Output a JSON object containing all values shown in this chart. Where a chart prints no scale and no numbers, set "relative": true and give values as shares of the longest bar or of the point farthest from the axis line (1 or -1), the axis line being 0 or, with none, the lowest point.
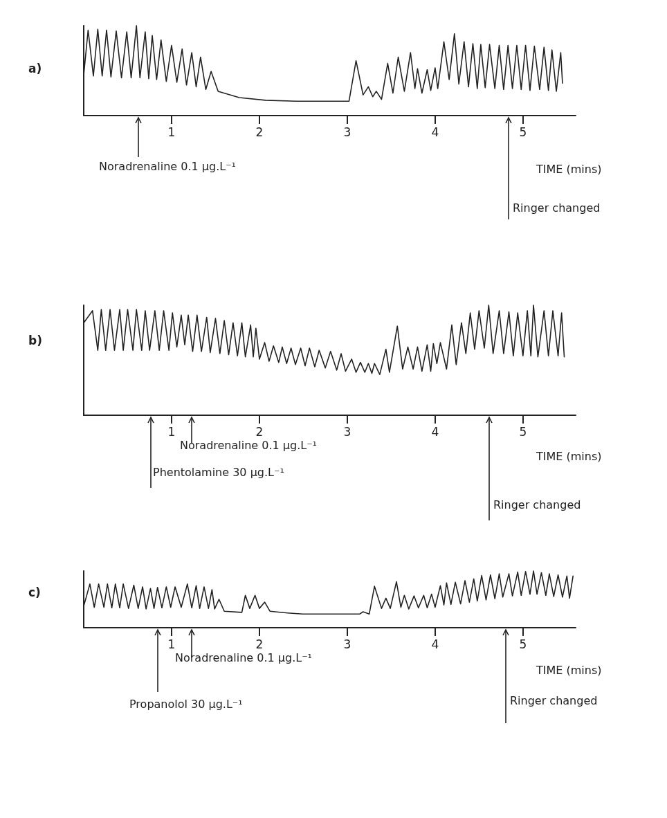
{
  "chart_data": [
    {
      "type": "line",
      "title": "a)",
      "xlabel": "TIME (mins)",
      "relative": true,
      "xlim": [
        0,
        5.6
      ],
      "xticks": [
        1,
        2,
        3,
        4,
        5
      ],
      "grid": false,
      "marker": "none",
      "line_style": "solid",
      "tick_labels": "x",
      "annotations": [
        "Noradrenaline 0.1 µg.L⁻¹",
        "Ringer changed"
      ],
      "series": [
        {
          "color": "#222222",
          "x": [
            0,
            0.05,
            0.11,
            0.16,
            0.21,
            0.26,
            0.31,
            0.37,
            0.43,
            0.49,
            0.54,
            0.6,
            0.64,
            0.7,
            0.74,
            0.78,
            0.83,
            0.88,
            0.94,
            1,
            1.06,
            1.12,
            1.17,
            1.23,
            1.28,
            1.33,
            1.39,
            1.45,
            1.53,
            1.77,
            2.07,
            2.42,
            3.02,
            3.1,
            3.18,
            3.24,
            3.29,
            3.33,
            3.39,
            3.46,
            3.52,
            3.58,
            3.65,
            3.72,
            3.77,
            3.8,
            3.85,
            3.91,
            3.95,
            4,
            4.03,
            4.1,
            4.16,
            4.22,
            4.27,
            4.33,
            4.38,
            4.43,
            4.48,
            4.52,
            4.57,
            4.62,
            4.68,
            4.73,
            4.78,
            4.83,
            4.88,
            4.93,
            4.98,
            5.03,
            5.08,
            5.13,
            5.19,
            5.24,
            5.29,
            5.33,
            5.38,
            5.43,
            5.45
          ],
          "values": [
            0.45,
            0.95,
            0.44,
            0.96,
            0.44,
            0.95,
            0.43,
            0.94,
            0.42,
            0.93,
            0.42,
            1,
            0.42,
            0.93,
            0.41,
            0.89,
            0.4,
            0.84,
            0.38,
            0.78,
            0.37,
            0.74,
            0.34,
            0.7,
            0.32,
            0.65,
            0.29,
            0.49,
            0.27,
            0.2,
            0.17,
            0.16,
            0.16,
            0.61,
            0.23,
            0.32,
            0.21,
            0.27,
            0.18,
            0.58,
            0.25,
            0.65,
            0.27,
            0.7,
            0.3,
            0.52,
            0.25,
            0.51,
            0.28,
            0.53,
            0.3,
            0.82,
            0.4,
            0.91,
            0.35,
            0.82,
            0.32,
            0.8,
            0.3,
            0.79,
            0.31,
            0.79,
            0.3,
            0.78,
            0.29,
            0.78,
            0.3,
            0.78,
            0.29,
            0.78,
            0.28,
            0.77,
            0.29,
            0.76,
            0.28,
            0.73,
            0.27,
            0.7,
            0.36
          ]
        }
      ]
    },
    {
      "type": "line",
      "title": "b)",
      "xlabel": "TIME (mins)",
      "relative": true,
      "xlim": [
        0,
        5.6
      ],
      "xticks": [
        1,
        2,
        3,
        4,
        5
      ],
      "grid": false,
      "marker": "none",
      "line_style": "solid",
      "tick_labels": "x",
      "annotations": [
        "Phentolamine 30 µg.L⁻¹",
        "Noradrenaline 0.1 µg.L⁻¹",
        "Ringer changed"
      ],
      "series": [
        {
          "color": "#222222",
          "x": [
            0,
            0.1,
            0.16,
            0.2,
            0.25,
            0.3,
            0.35,
            0.41,
            0.45,
            0.5,
            0.56,
            0.6,
            0.66,
            0.7,
            0.75,
            0.81,
            0.86,
            0.91,
            0.97,
            1.01,
            1.06,
            1.11,
            1.15,
            1.19,
            1.24,
            1.29,
            1.34,
            1.4,
            1.44,
            1.5,
            1.55,
            1.6,
            1.65,
            1.7,
            1.75,
            1.8,
            1.84,
            1.9,
            1.93,
            1.96,
            2,
            2.06,
            2.11,
            2.16,
            2.22,
            2.26,
            2.31,
            2.36,
            2.41,
            2.47,
            2.52,
            2.57,
            2.63,
            2.68,
            2.75,
            2.81,
            2.88,
            2.93,
            2.98,
            3.05,
            3.1,
            3.15,
            3.2,
            3.24,
            3.28,
            3.31,
            3.37,
            3.44,
            3.48,
            3.57,
            3.63,
            3.69,
            3.75,
            3.8,
            3.85,
            3.91,
            3.95,
            3.98,
            4.02,
            4.06,
            4.13,
            4.19,
            4.24,
            4.3,
            4.35,
            4.4,
            4.45,
            4.5,
            4.56,
            4.61,
            4.66,
            4.73,
            4.78,
            4.84,
            4.89,
            4.94,
            5,
            5.05,
            5.09,
            5.12,
            5.17,
            5.24,
            5.29,
            5.34,
            5.4,
            5.44,
            5.47
          ],
          "values": [
            0.84,
            0.95,
            0.59,
            0.96,
            0.59,
            0.96,
            0.59,
            0.96,
            0.59,
            0.96,
            0.59,
            0.96,
            0.59,
            0.95,
            0.59,
            0.95,
            0.59,
            0.95,
            0.59,
            0.93,
            0.62,
            0.91,
            0.64,
            0.91,
            0.58,
            0.91,
            0.58,
            0.89,
            0.57,
            0.88,
            0.56,
            0.86,
            0.55,
            0.84,
            0.54,
            0.84,
            0.53,
            0.82,
            0.53,
            0.79,
            0.51,
            0.66,
            0.49,
            0.63,
            0.48,
            0.62,
            0.47,
            0.61,
            0.46,
            0.61,
            0.45,
            0.61,
            0.44,
            0.59,
            0.43,
            0.58,
            0.41,
            0.56,
            0.4,
            0.51,
            0.39,
            0.48,
            0.39,
            0.47,
            0.38,
            0.47,
            0.37,
            0.6,
            0.39,
            0.81,
            0.42,
            0.62,
            0.42,
            0.62,
            0.4,
            0.64,
            0.4,
            0.65,
            0.47,
            0.66,
            0.42,
            0.82,
            0.46,
            0.84,
            0.56,
            0.93,
            0.6,
            0.95,
            0.61,
            1,
            0.56,
            0.95,
            0.56,
            0.94,
            0.54,
            0.93,
            0.54,
            0.95,
            0.54,
            1,
            0.53,
            0.95,
            0.54,
            0.95,
            0.54,
            0.93,
            0.53
          ]
        }
      ]
    },
    {
      "type": "line",
      "title": "c)",
      "xlabel": "TIME (mins)",
      "relative": true,
      "xlim": [
        0,
        5.6
      ],
      "xticks": [
        1,
        2,
        3,
        4,
        5
      ],
      "grid": false,
      "marker": "none",
      "line_style": "solid",
      "tick_labels": "x",
      "annotations": [
        "Propanolol 30 µg.L⁻¹",
        "Noradrenaline 0.1 µg.L⁻¹",
        "Ringer changed"
      ],
      "series": [
        {
          "color": "#222222",
          "x": [
            0,
            0.07,
            0.12,
            0.17,
            0.23,
            0.27,
            0.32,
            0.36,
            0.41,
            0.45,
            0.51,
            0.57,
            0.62,
            0.67,
            0.71,
            0.76,
            0.8,
            0.84,
            0.89,
            0.94,
            0.99,
            1.04,
            1.11,
            1.18,
            1.23,
            1.28,
            1.32,
            1.37,
            1.42,
            1.46,
            1.49,
            1.54,
            1.6,
            1.8,
            1.84,
            1.89,
            1.95,
            2,
            2.06,
            2.12,
            2.32,
            2.49,
            3.14,
            3.18,
            3.25,
            3.31,
            3.39,
            3.44,
            3.49,
            3.56,
            3.61,
            3.65,
            3.7,
            3.76,
            3.81,
            3.87,
            3.91,
            3.96,
            4,
            4.06,
            4.1,
            4.13,
            4.18,
            4.23,
            4.29,
            4.34,
            4.39,
            4.44,
            4.48,
            4.53,
            4.58,
            4.63,
            4.68,
            4.73,
            4.77,
            4.84,
            4.88,
            4.94,
            4.98,
            5.03,
            5.08,
            5.12,
            5.16,
            5.21,
            5.26,
            5.3,
            5.35,
            5.4,
            5.45,
            5.5,
            5.53,
            5.57
          ],
          "values": [
            0.38,
            0.77,
            0.36,
            0.77,
            0.36,
            0.77,
            0.35,
            0.77,
            0.35,
            0.77,
            0.34,
            0.75,
            0.34,
            0.72,
            0.33,
            0.69,
            0.34,
            0.71,
            0.35,
            0.72,
            0.36,
            0.72,
            0.36,
            0.77,
            0.35,
            0.74,
            0.34,
            0.72,
            0.34,
            0.67,
            0.33,
            0.5,
            0.29,
            0.27,
            0.57,
            0.34,
            0.57,
            0.34,
            0.45,
            0.29,
            0.26,
            0.24,
            0.24,
            0.28,
            0.24,
            0.73,
            0.34,
            0.52,
            0.34,
            0.81,
            0.36,
            0.57,
            0.33,
            0.56,
            0.35,
            0.57,
            0.35,
            0.59,
            0.36,
            0.74,
            0.4,
            0.79,
            0.41,
            0.8,
            0.42,
            0.83,
            0.45,
            0.86,
            0.47,
            0.92,
            0.49,
            0.93,
            0.51,
            0.95,
            0.54,
            0.95,
            0.56,
            0.98,
            0.57,
            0.99,
            0.59,
            1,
            0.59,
            0.97,
            0.57,
            0.95,
            0.55,
            0.93,
            0.54,
            0.91,
            0.52,
            0.91
          ]
        }
      ]
    }
  ]
}
